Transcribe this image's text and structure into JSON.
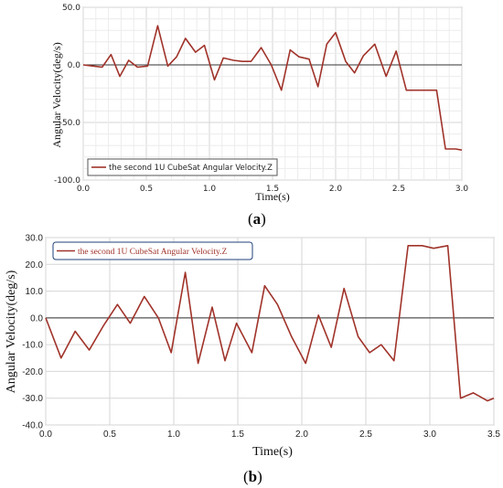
{
  "chart_data": [
    {
      "type": "line",
      "caption": "a",
      "xlabel": "Time(s)",
      "ylabel": "Angular Velocity(deg/s)",
      "xlim": [
        0,
        3.0
      ],
      "ylim": [
        -100,
        50
      ],
      "xticks": [
        "0.0",
        "0.5",
        "1.0",
        "1.5",
        "2.0",
        "2.5",
        "3.0"
      ],
      "yticks": [
        "50.0",
        "0.0",
        "-50.0",
        "-100.0"
      ],
      "xtick_values": [
        0,
        0.5,
        1.0,
        1.5,
        2.0,
        2.5,
        3.0
      ],
      "ytick_values": [
        50,
        0,
        -50,
        -100
      ],
      "grid": true,
      "legend_position": "bottom-left",
      "series": [
        {
          "name": "the second 1U CubeSat Angular Velocity.Z",
          "color": "#a0332a",
          "x": [
            0.0,
            0.08,
            0.15,
            0.22,
            0.29,
            0.36,
            0.43,
            0.51,
            0.59,
            0.67,
            0.74,
            0.81,
            0.89,
            0.96,
            1.04,
            1.11,
            1.19,
            1.26,
            1.33,
            1.41,
            1.49,
            1.57,
            1.64,
            1.71,
            1.79,
            1.86,
            1.93,
            2.0,
            2.08,
            2.15,
            2.22,
            2.31,
            2.4,
            2.48,
            2.56,
            2.62,
            2.7,
            2.8,
            2.87,
            2.95,
            3.0
          ],
          "y": [
            0,
            -1,
            -2,
            9,
            -10,
            4,
            -2,
            -1,
            34,
            -1,
            7,
            23,
            11,
            17,
            -13,
            6,
            4,
            3,
            3,
            15,
            0,
            -22,
            13,
            7,
            5,
            -19,
            18,
            28,
            3,
            -7,
            8,
            18,
            -10,
            12,
            -22,
            -22,
            -22,
            -22,
            -73,
            -73,
            -74
          ]
        }
      ]
    },
    {
      "type": "line",
      "caption": "b",
      "xlabel": "Time(s)",
      "ylabel": "Angular Velocity(deg/s)",
      "xlim": [
        0,
        3.5
      ],
      "ylim": [
        -40,
        30
      ],
      "xticks": [
        "0.0",
        "0.5",
        "1.0",
        "1.5",
        "2.0",
        "2.5",
        "3.0",
        "3.5"
      ],
      "yticks": [
        "30.0",
        "20.0",
        "10.0",
        "0.0",
        "-10.0",
        "-20.0",
        "-30.0",
        "-40.0"
      ],
      "xtick_values": [
        0,
        0.5,
        1.0,
        1.5,
        2.0,
        2.5,
        3.0,
        3.5
      ],
      "ytick_values": [
        30,
        20,
        10,
        0,
        -10,
        -20,
        -30,
        -40
      ],
      "grid": true,
      "legend_position": "top-left",
      "series": [
        {
          "name": "the second 1U CubeSat Angular Velocity.Z",
          "color": "#a0332a",
          "x": [
            0.0,
            0.12,
            0.23,
            0.34,
            0.45,
            0.56,
            0.66,
            0.77,
            0.88,
            0.98,
            1.09,
            1.19,
            1.3,
            1.4,
            1.49,
            1.61,
            1.71,
            1.81,
            1.92,
            2.03,
            2.13,
            2.23,
            2.33,
            2.44,
            2.53,
            2.62,
            2.72,
            2.83,
            2.94,
            3.03,
            3.14,
            3.24,
            3.34,
            3.45,
            3.5
          ],
          "y": [
            0,
            -15,
            -5,
            -12,
            -3,
            5,
            -2,
            8,
            0,
            -13,
            17,
            -17,
            4,
            -16,
            -2,
            -13,
            12,
            5,
            -7,
            -17,
            1,
            -11,
            11,
            -7,
            -13,
            -10,
            -16,
            27,
            27,
            26,
            27,
            -30,
            -28,
            -31,
            -30
          ]
        }
      ]
    }
  ]
}
